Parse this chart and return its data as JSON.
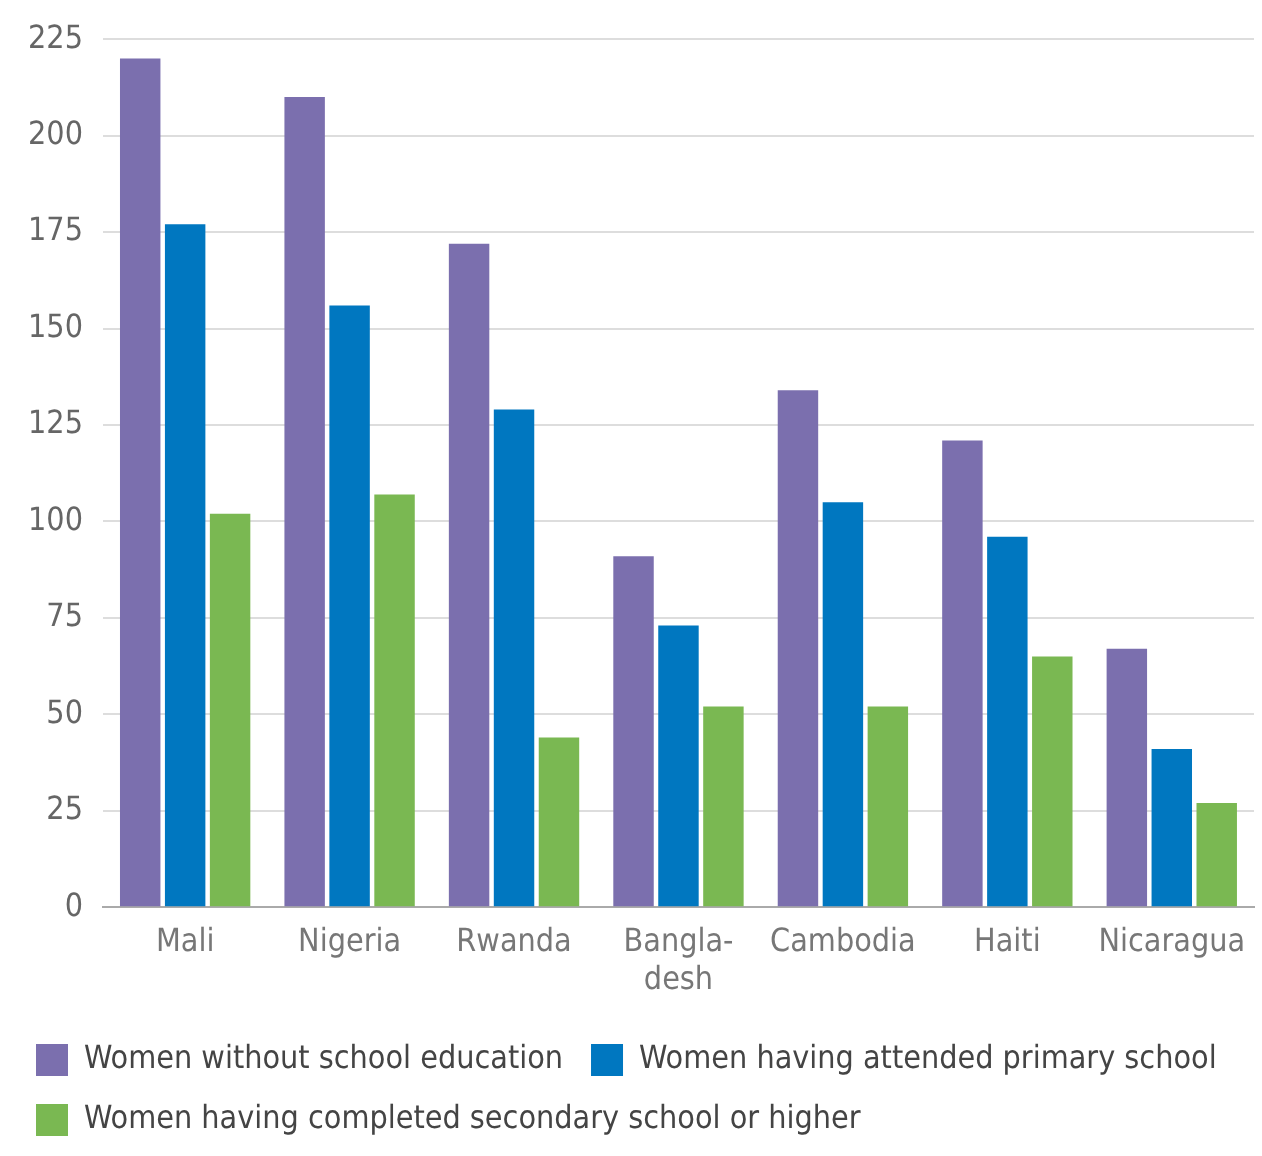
{
  "chart_data": {
    "type": "bar",
    "categories": [
      "Mali",
      "Nigeria",
      "Rwanda",
      "Bangla-\ndesh",
      "Cambodia",
      "Haiti",
      "Nicaragua"
    ],
    "series": [
      {
        "name": "Women without school education",
        "color": "#7b6fae",
        "values": [
          220,
          210,
          172,
          91,
          134,
          121,
          67
        ]
      },
      {
        "name": "Women having attended primary school",
        "color": "#0077c0",
        "values": [
          177,
          156,
          129,
          73,
          105,
          96,
          41
        ]
      },
      {
        "name": "Women having completed secondary school or higher",
        "color": "#7ab852",
        "values": [
          102,
          107,
          44,
          52,
          52,
          65,
          27
        ]
      }
    ],
    "ylim": [
      0,
      225
    ],
    "yticks": [
      0,
      25,
      50,
      75,
      100,
      125,
      150,
      175,
      200,
      225
    ],
    "grid": "y",
    "legend": "bottom"
  }
}
